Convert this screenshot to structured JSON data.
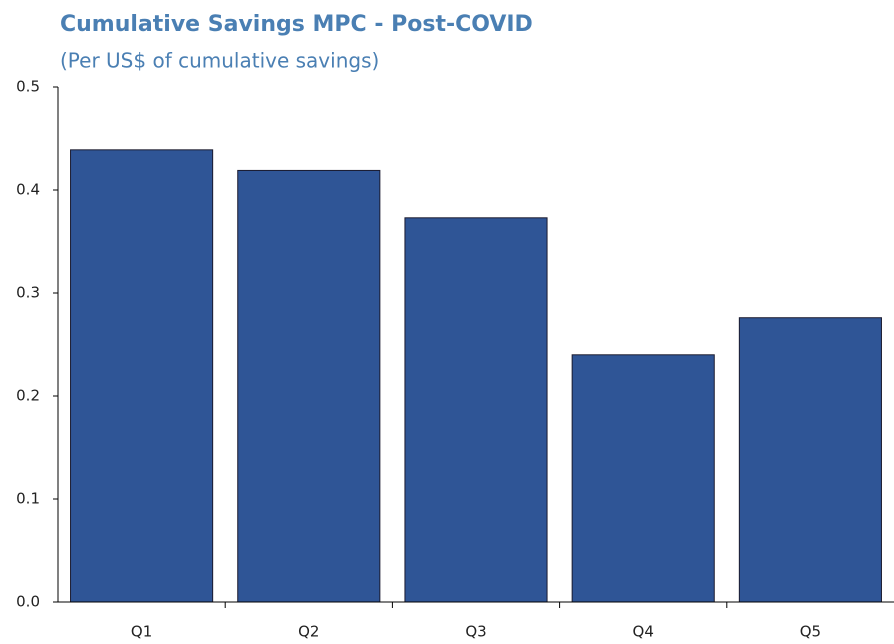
{
  "chart_data": {
    "type": "bar",
    "title": "Cumulative Savings MPC - Post-COVID",
    "subtitle": "(Per US$ of cumulative savings)",
    "categories": [
      "Q1",
      "Q2",
      "Q3",
      "Q4",
      "Q5"
    ],
    "values": [
      0.439,
      0.419,
      0.373,
      0.24,
      0.276
    ],
    "color": "#2f5596",
    "ylim": [
      0,
      0.5
    ],
    "yticks": [
      {
        "value": 0,
        "label": "0.0"
      },
      0.1,
      0.2,
      0.3,
      0.4,
      0.5
    ],
    "grid": false
  }
}
